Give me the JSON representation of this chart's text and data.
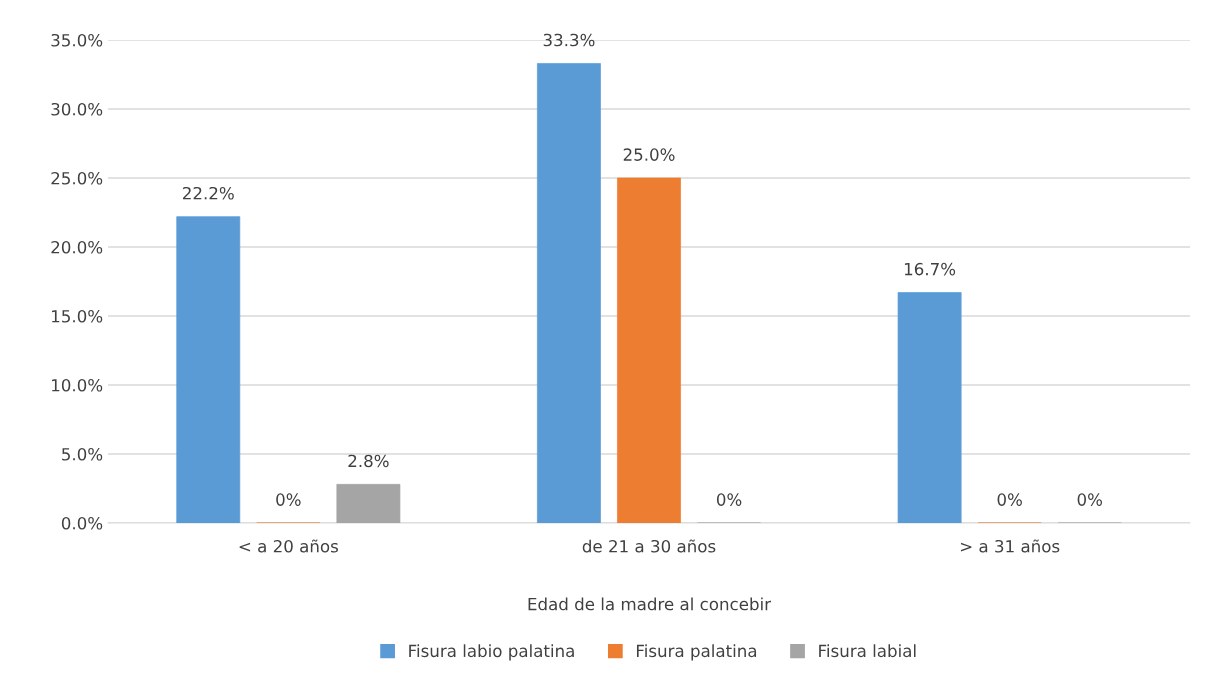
{
  "chart_data": {
    "type": "bar",
    "xlabel": "Edad de la madre al concebir",
    "categories": [
      "< a 20 años",
      "de 21 a 30 años",
      "> a 31 años"
    ],
    "series": [
      {
        "name": "Fisura labio palatina",
        "color": "#5b9bd5",
        "values": [
          22.2,
          33.3,
          16.7
        ],
        "value_labels": [
          "22.2%",
          "33.3%",
          "16.7%"
        ]
      },
      {
        "name": "Fisura palatina",
        "color": "#ed7d31",
        "values": [
          0,
          25.0,
          0
        ],
        "value_labels": [
          "0%",
          "25.0%",
          "0%"
        ]
      },
      {
        "name": "Fisura labial",
        "color": "#a5a5a5",
        "values": [
          2.8,
          0,
          0
        ],
        "value_labels": [
          "2.8%",
          "0%",
          "0%"
        ]
      }
    ],
    "ylim": [
      0,
      35
    ],
    "yticks": [
      {
        "value": 0,
        "label": "0.0%"
      },
      {
        "value": 5,
        "label": "5.0%"
      },
      {
        "value": 10,
        "label": "10.0%"
      },
      {
        "value": 15,
        "label": "15.0%"
      },
      {
        "value": 20,
        "label": "20.0%"
      },
      {
        "value": 25,
        "label": "25.0%"
      },
      {
        "value": 30,
        "label": "30.0%"
      },
      {
        "value": 35,
        "label": "35.0%"
      }
    ],
    "grid": "y",
    "legend": "bottom"
  }
}
